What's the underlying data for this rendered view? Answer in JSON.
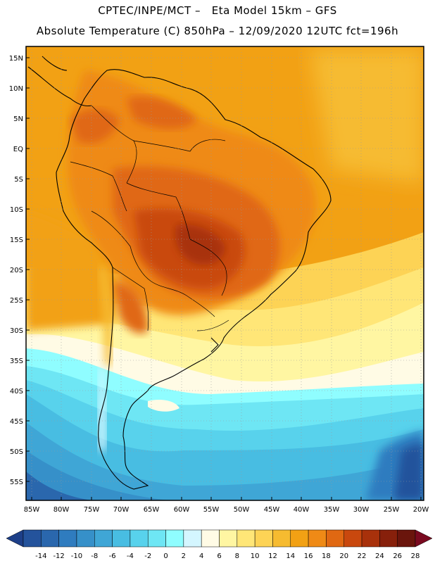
{
  "header": {
    "line1": "CPTEC/INPE/MCT –   Eta Model 15km – GFS",
    "line2": "Absolute Temperature (C) 850hPa – 12/09/2020 12UTC fct=196h"
  },
  "map": {
    "lat_labels": [
      "15N",
      "10N",
      "5N",
      "EQ",
      "5S",
      "10S",
      "15S",
      "20S",
      "25S",
      "30S",
      "35S",
      "40S",
      "45S",
      "50S",
      "55S"
    ],
    "lon_labels": [
      "85W",
      "80W",
      "75W",
      "70W",
      "65W",
      "60W",
      "55W",
      "50W",
      "45W",
      "40W",
      "35W",
      "30W",
      "25W",
      "20W"
    ]
  },
  "colorbar": {
    "tick_labels": [
      "-14",
      "-12",
      "-10",
      "-8",
      "-6",
      "-4",
      "-2",
      "0",
      "2",
      "4",
      "6",
      "8",
      "10",
      "12",
      "14",
      "16",
      "18",
      "20",
      "22",
      "24",
      "26",
      "28"
    ],
    "colors": [
      "#1d3f88",
      "#24539c",
      "#2a67ad",
      "#2f7cbf",
      "#3690c9",
      "#3fa6d6",
      "#48bde2",
      "#58d2ec",
      "#6ee6f4",
      "#8ffdff",
      "#d4f6ff",
      "#fffbe5",
      "#fff6a2",
      "#ffe677",
      "#fdd355",
      "#f6bb30",
      "#f2a114",
      "#ef8a16",
      "#e06812",
      "#c9480e",
      "#a8310b",
      "#87200b",
      "#6a150c",
      "#7a0a20"
    ]
  }
}
